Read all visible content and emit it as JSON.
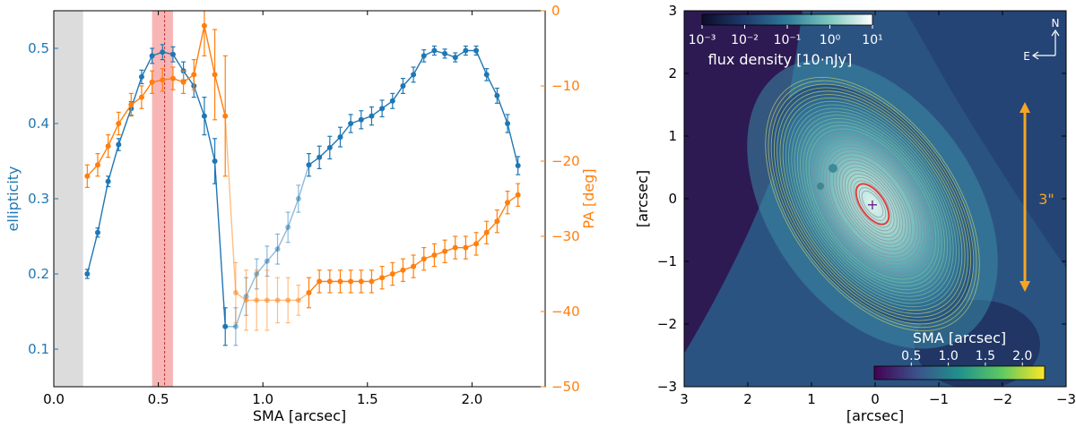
{
  "chart_data": [
    {
      "type": "line",
      "xlabel": "SMA [arcsec]",
      "ylabel_left": "ellipticity",
      "ylabel_right": "PA [deg]",
      "xlim": [
        0,
        2.35
      ],
      "ylim_left": [
        0.05,
        0.55
      ],
      "ylim_right": [
        -50,
        0
      ],
      "xticks": [
        0.0,
        0.5,
        1.0,
        1.5,
        2.0
      ],
      "xtick_labels": [
        "0.0",
        "0.5",
        "1.0",
        "1.5",
        "2.0"
      ],
      "yticks_left": [
        0.1,
        0.2,
        0.3,
        0.4,
        0.5
      ],
      "ytick_labels_left": [
        "0.1",
        "0.2",
        "0.3",
        "0.4",
        "0.5"
      ],
      "yticks_right": [
        0,
        -10,
        -20,
        -30,
        -40,
        -50
      ],
      "ytick_labels_right": [
        "0",
        "−10",
        "−20",
        "−30",
        "−40",
        "−50"
      ],
      "colors": {
        "ellipticity": "#1f77b4",
        "pa": "#ff7f0e",
        "gray_band": "#dcdcdc",
        "red_band": "#f7a8a8",
        "dashed_line": "#c03030"
      },
      "gray_band_x": [
        0.0,
        0.14
      ],
      "red_band_x": [
        0.47,
        0.57
      ],
      "dashed_line_x": 0.53,
      "series": [
        {
          "name": "ellipticity",
          "axis": "left",
          "x": [
            0.16,
            0.21,
            0.26,
            0.31,
            0.37,
            0.42,
            0.47,
            0.52,
            0.57,
            0.62,
            0.67,
            0.72,
            0.77,
            0.82,
            0.87,
            0.92,
            0.97,
            1.02,
            1.07,
            1.12,
            1.17,
            1.22,
            1.27,
            1.32,
            1.37,
            1.42,
            1.47,
            1.52,
            1.57,
            1.62,
            1.67,
            1.72,
            1.77,
            1.82,
            1.87,
            1.92,
            1.97,
            2.02,
            2.07,
            2.12,
            2.17,
            2.22
          ],
          "y": [
            0.2,
            0.255,
            0.323,
            0.372,
            0.42,
            0.462,
            0.49,
            0.495,
            0.492,
            0.47,
            0.45,
            0.41,
            0.35,
            0.13,
            0.13,
            0.17,
            0.2,
            0.217,
            0.233,
            0.262,
            0.3,
            0.345,
            0.355,
            0.368,
            0.382,
            0.4,
            0.405,
            0.41,
            0.42,
            0.43,
            0.45,
            0.465,
            0.49,
            0.497,
            0.493,
            0.488,
            0.497,
            0.497,
            0.465,
            0.437,
            0.4,
            0.344
          ],
          "yerr": [
            0.006,
            0.006,
            0.007,
            0.008,
            0.009,
            0.009,
            0.01,
            0.01,
            0.01,
            0.012,
            0.015,
            0.025,
            0.03,
            0.025,
            0.025,
            0.025,
            0.02,
            0.02,
            0.02,
            0.02,
            0.018,
            0.015,
            0.015,
            0.015,
            0.013,
            0.012,
            0.012,
            0.012,
            0.011,
            0.01,
            0.01,
            0.01,
            0.008,
            0.006,
            0.006,
            0.006,
            0.006,
            0.006,
            0.008,
            0.01,
            0.012,
            0.012
          ],
          "faded_range": [
            0.85,
            1.2
          ]
        },
        {
          "name": "PA",
          "axis": "right",
          "x": [
            0.16,
            0.21,
            0.26,
            0.31,
            0.37,
            0.42,
            0.47,
            0.52,
            0.57,
            0.62,
            0.67,
            0.72,
            0.77,
            0.82,
            0.87,
            0.92,
            0.97,
            1.02,
            1.07,
            1.12,
            1.17,
            1.22,
            1.27,
            1.32,
            1.37,
            1.42,
            1.47,
            1.52,
            1.57,
            1.62,
            1.67,
            1.72,
            1.77,
            1.82,
            1.87,
            1.92,
            1.97,
            2.02,
            2.07,
            2.12,
            2.17,
            2.22
          ],
          "y": [
            -22,
            -20.5,
            -18,
            -15,
            -12.5,
            -11.5,
            -9.5,
            -9.2,
            -9.0,
            -9.5,
            -8.5,
            -2.0,
            -8.5,
            -14,
            -37.5,
            -38.5,
            -38.5,
            -38.5,
            -38.5,
            -38.5,
            -38.5,
            -37.5,
            -36,
            -36,
            -36,
            -36,
            -36,
            -36,
            -35.5,
            -35,
            -34.5,
            -34,
            -33,
            -32.5,
            -32,
            -31.5,
            -31.5,
            -31,
            -29.5,
            -28,
            -25.5,
            -24.5
          ],
          "yerr": [
            1.5,
            1.5,
            1.5,
            1.5,
            1.5,
            1.5,
            1.5,
            1.5,
            1.5,
            1.5,
            2,
            4,
            6,
            8,
            4,
            4,
            4,
            4,
            3,
            3,
            2,
            2,
            1.5,
            1.5,
            1.5,
            1.5,
            1.5,
            1.5,
            1.5,
            1.5,
            1.5,
            1.5,
            1.5,
            1.5,
            1.5,
            1.5,
            1.5,
            1.5,
            1.5,
            1.5,
            1.5,
            1.5
          ],
          "faded_range": [
            0.85,
            1.2
          ]
        }
      ]
    },
    {
      "type": "image",
      "xlabel": "[arcsec]",
      "ylabel": "[arcsec]",
      "xlim": [
        3,
        -3
      ],
      "ylim": [
        -3,
        3
      ],
      "xticks": [
        3,
        2,
        1,
        0,
        -1,
        -2,
        -3
      ],
      "xtick_labels": [
        "3",
        "2",
        "1",
        "0",
        "−1",
        "−2",
        "−3"
      ],
      "yticks": [
        3,
        2,
        1,
        0,
        -1,
        -2,
        -3
      ],
      "ytick_labels": [
        "3",
        "2",
        "1",
        "0",
        "−1",
        "−2",
        "−3"
      ],
      "colorbar_flux": {
        "label": "flux density [10·nJy]",
        "ticks": [
          "10⁻³",
          "10⁻²",
          "10⁻¹",
          "10⁰",
          "10¹"
        ]
      },
      "colorbar_sma": {
        "label": "SMA [arcsec]",
        "ticks": [
          "0.5",
          "1.0",
          "1.5",
          "2.0"
        ]
      },
      "scale_bar": {
        "label": "3\"",
        "length_arcsec": 3
      },
      "compass": {
        "north": "N",
        "east": "E"
      },
      "center_marker": "+",
      "ellipse_pa_deg": -35,
      "red_ellipse_sma_arcsec": 0.53,
      "colors": {
        "background": "#2d1a52",
        "scale_bar": "#f5a623",
        "red_ellipse": "#e04040"
      }
    }
  ]
}
